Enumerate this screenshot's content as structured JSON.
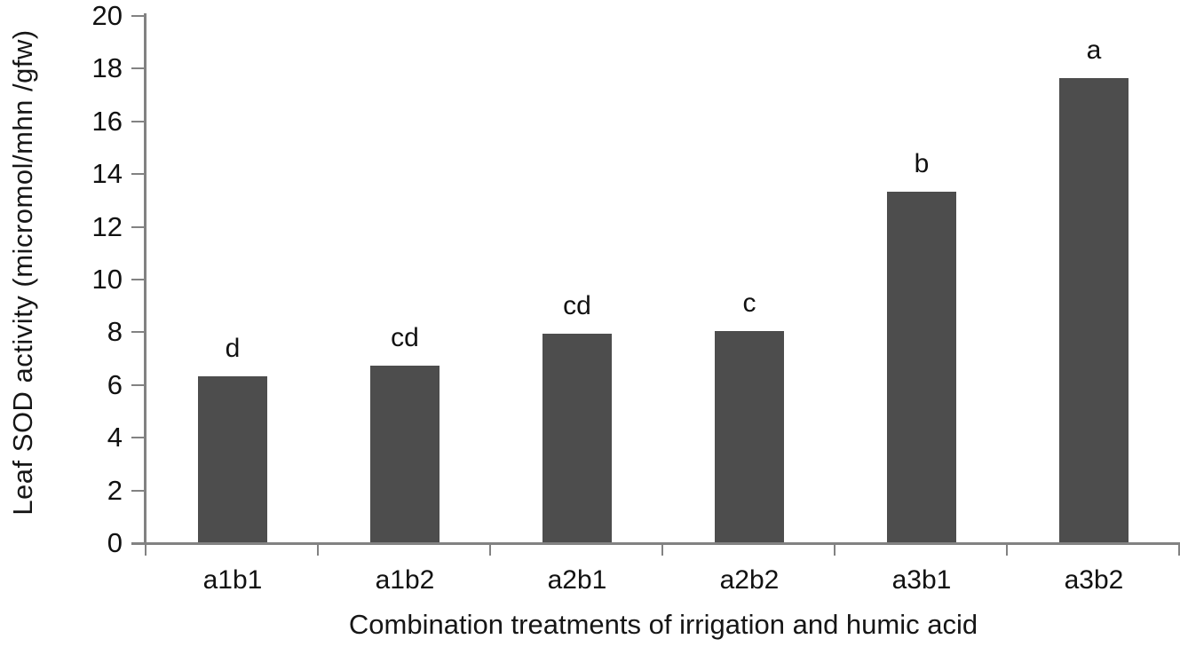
{
  "chart_data": {
    "type": "bar",
    "title": "",
    "categories": [
      "a1b1",
      "a1b2",
      "a2b1",
      "a2b2",
      "a3b1",
      "a3b2"
    ],
    "values": [
      6.3,
      6.7,
      7.9,
      8.0,
      13.3,
      17.6
    ],
    "bar_labels": [
      "d",
      "cd",
      "cd",
      "c",
      "b",
      "a"
    ],
    "xlabel": "Combination treatments of irrigation and humic acid",
    "ylabel": "Leaf SOD activity (micromol/mhn /gfw)",
    "ylim": [
      0,
      20
    ],
    "yticks": [
      0,
      2,
      4,
      6,
      8,
      10,
      12,
      14,
      16,
      18,
      20
    ],
    "grid": false,
    "legend_position": "none",
    "colors": {
      "bar_fill": "#4d4d4d",
      "axis_line": "#828282",
      "text": "#111111",
      "background": "#ffffff"
    }
  }
}
